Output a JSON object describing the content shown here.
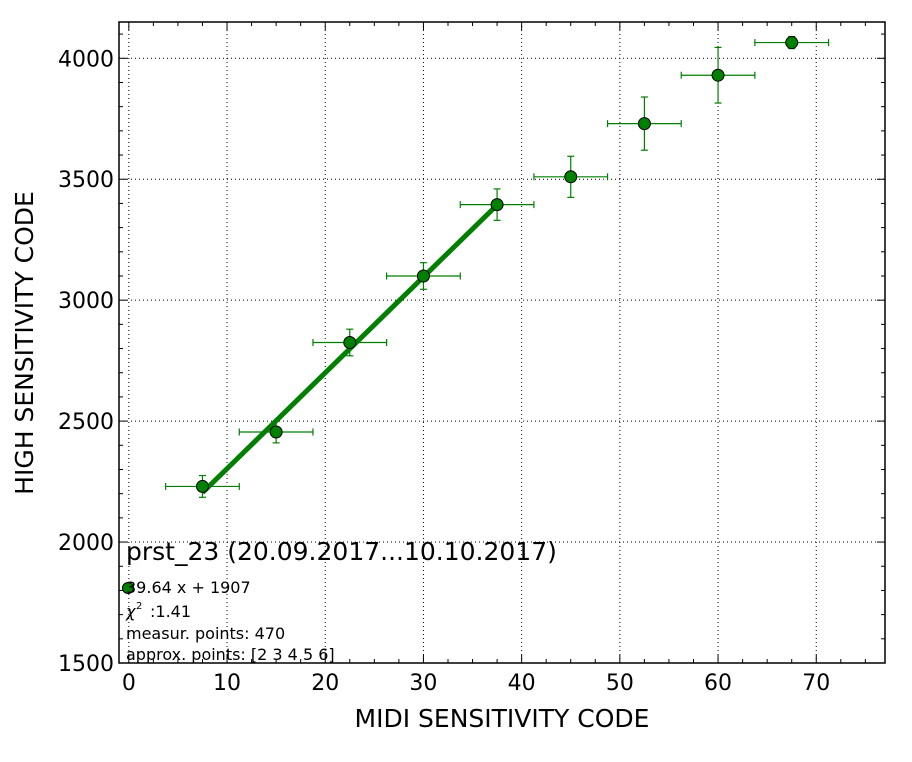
{
  "chart_data": {
    "type": "scatter",
    "title": "prst_23 (20.09.2017...10.10.2017)",
    "xlabel": "MIDI SENSITIVITY CODE",
    "ylabel": "HIGH SENSITIVITY CODE",
    "xlim": [
      -1,
      77
    ],
    "ylim": [
      1500,
      4150
    ],
    "xticks": [
      0,
      10,
      20,
      30,
      40,
      50,
      60,
      70
    ],
    "yticks": [
      1500,
      2000,
      2500,
      3000,
      3500,
      4000
    ],
    "grid": true,
    "series": [
      {
        "kind": "points",
        "color": "#007f00",
        "marker_color": "#008000",
        "x": [
          7.5,
          15,
          22.5,
          30,
          37.5,
          45,
          52.5,
          60,
          67.5
        ],
        "y": [
          2230,
          2455,
          2825,
          3100,
          3395,
          3510,
          3730,
          3930,
          4065
        ],
        "x_err": [
          3.75,
          3.75,
          3.75,
          3.75,
          3.75,
          3.75,
          3.75,
          3.75,
          3.75
        ],
        "y_err": [
          45,
          45,
          55,
          55,
          65,
          85,
          110,
          115,
          25
        ]
      },
      {
        "kind": "fit-line",
        "color": "#007f00",
        "slope": 39.64,
        "intercept": 1907,
        "x_range": [
          7.5,
          37.5
        ]
      }
    ],
    "legend": {
      "placement": "lower-left",
      "fit_label": "39.64 x + 1907",
      "chi2_label": ":1.41",
      "measur_label": "measur. points: 470",
      "approx_label": "approx. points: [2 3 4 5 6]"
    }
  }
}
